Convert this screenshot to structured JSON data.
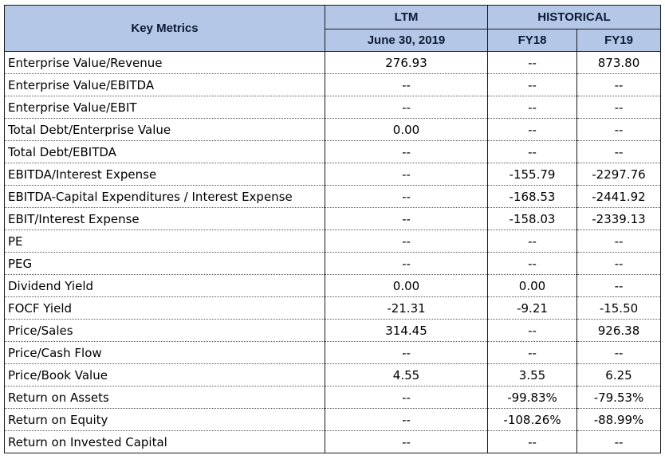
{
  "header": {
    "key_metrics": "Key Metrics",
    "ltm": "LTM",
    "historical": "HISTORICAL",
    "ltm_date": "June 30, 2019",
    "fy18": "FY18",
    "fy19": "FY19"
  },
  "rows": [
    {
      "label": "Enterprise Value/Revenue",
      "ltm": "276.93",
      "fy18": "--",
      "fy19": "873.80"
    },
    {
      "label": "Enterprise Value/EBITDA",
      "ltm": "--",
      "fy18": "--",
      "fy19": "--"
    },
    {
      "label": "Enterprise Value/EBIT",
      "ltm": "--",
      "fy18": "--",
      "fy19": "--"
    },
    {
      "label": "Total Debt/Enterprise Value",
      "ltm": "0.00",
      "fy18": "--",
      "fy19": "--"
    },
    {
      "label": "Total Debt/EBITDA",
      "ltm": "--",
      "fy18": "--",
      "fy19": "--"
    },
    {
      "label": "EBITDA/Interest Expense",
      "ltm": "--",
      "fy18": "-155.79",
      "fy19": "-2297.76"
    },
    {
      "label": "EBITDA-Capital Expenditures / Interest Expense",
      "ltm": "--",
      "fy18": "-168.53",
      "fy19": "-2441.92"
    },
    {
      "label": "EBIT/Interest Expense",
      "ltm": "--",
      "fy18": "-158.03",
      "fy19": "-2339.13"
    },
    {
      "label": "PE",
      "ltm": "--",
      "fy18": "--",
      "fy19": "--"
    },
    {
      "label": "PEG",
      "ltm": "--",
      "fy18": "--",
      "fy19": "--"
    },
    {
      "label": "Dividend Yield",
      "ltm": "0.00",
      "fy18": "0.00",
      "fy19": "--"
    },
    {
      "label": "FOCF Yield",
      "ltm": "-21.31",
      "fy18": "-9.21",
      "fy19": "-15.50"
    },
    {
      "label": "Price/Sales",
      "ltm": "314.45",
      "fy18": "--",
      "fy19": "926.38"
    },
    {
      "label": "Price/Cash Flow",
      "ltm": "--",
      "fy18": "--",
      "fy19": "--"
    },
    {
      "label": "Price/Book Value",
      "ltm": "4.55",
      "fy18": "3.55",
      "fy19": "6.25"
    },
    {
      "label": "Return on Assets",
      "ltm": "--",
      "fy18": "-99.83%",
      "fy19": "-79.53%"
    },
    {
      "label": "Return on Equity",
      "ltm": "--",
      "fy18": "-108.26%",
      "fy19": "-88.99%"
    },
    {
      "label": "Return on Invested Capital",
      "ltm": "--",
      "fy18": "--",
      "fy19": "--"
    }
  ]
}
